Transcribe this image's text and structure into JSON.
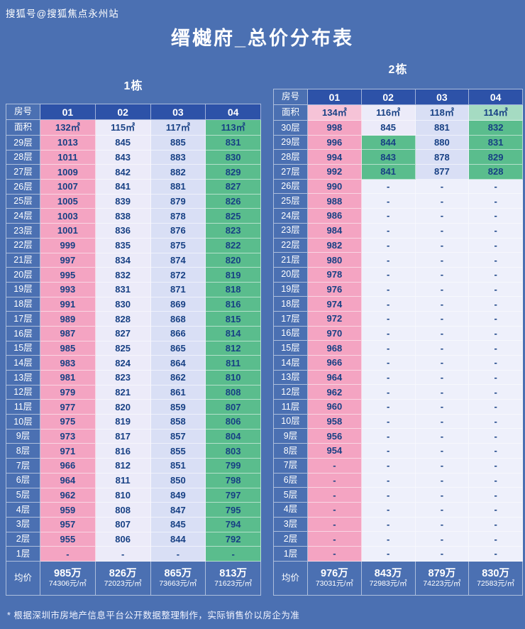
{
  "page": {
    "watermark": "搜狐号@搜狐焦点永州站",
    "title": "缙樾府_总价分布表",
    "footnote": "* 根据深圳市房地产信息平台公开数据整理制作，实际销售价以房企为准"
  },
  "colors": {
    "page_bg": "#4b70b2",
    "header_blue": "#2d52a8",
    "number_text": "#174084",
    "pink": "#f4a4c2",
    "pinksoft": "#f6c3d7",
    "light": "#ecebf9",
    "lightblue": "#d9dff5",
    "green": "#5abd8d",
    "greensoft": "#a5dbc2",
    "pale": "#eef0fb"
  },
  "chart_data": [
    {
      "type": "table",
      "building_label": "1栋",
      "room_header": "房号",
      "area_header": "面积",
      "avg_label": "均价",
      "room_numbers": [
        "01",
        "02",
        "03",
        "04"
      ],
      "areas": [
        "132㎡",
        "115㎡",
        "117㎡",
        "113㎡"
      ],
      "area_colors": [
        "pink",
        "light",
        "lightblue",
        "green"
      ],
      "default_colors": [
        "pink",
        "light",
        "lightblue",
        "green"
      ],
      "floors": [
        {
          "label": "29层",
          "values": [
            "1013",
            "845",
            "885",
            "831"
          ]
        },
        {
          "label": "28层",
          "values": [
            "1011",
            "843",
            "883",
            "830"
          ]
        },
        {
          "label": "27层",
          "values": [
            "1009",
            "842",
            "882",
            "829"
          ]
        },
        {
          "label": "26层",
          "values": [
            "1007",
            "841",
            "881",
            "827"
          ]
        },
        {
          "label": "25层",
          "values": [
            "1005",
            "839",
            "879",
            "826"
          ]
        },
        {
          "label": "24层",
          "values": [
            "1003",
            "838",
            "878",
            "825"
          ]
        },
        {
          "label": "23层",
          "values": [
            "1001",
            "836",
            "876",
            "823"
          ]
        },
        {
          "label": "22层",
          "values": [
            "999",
            "835",
            "875",
            "822"
          ]
        },
        {
          "label": "21层",
          "values": [
            "997",
            "834",
            "874",
            "820"
          ]
        },
        {
          "label": "20层",
          "values": [
            "995",
            "832",
            "872",
            "819"
          ]
        },
        {
          "label": "19层",
          "values": [
            "993",
            "831",
            "871",
            "818"
          ]
        },
        {
          "label": "18层",
          "values": [
            "991",
            "830",
            "869",
            "816"
          ]
        },
        {
          "label": "17层",
          "values": [
            "989",
            "828",
            "868",
            "815"
          ]
        },
        {
          "label": "16层",
          "values": [
            "987",
            "827",
            "866",
            "814"
          ]
        },
        {
          "label": "15层",
          "values": [
            "985",
            "825",
            "865",
            "812"
          ]
        },
        {
          "label": "14层",
          "values": [
            "983",
            "824",
            "864",
            "811"
          ]
        },
        {
          "label": "13层",
          "values": [
            "981",
            "823",
            "862",
            "810"
          ]
        },
        {
          "label": "12层",
          "values": [
            "979",
            "821",
            "861",
            "808"
          ]
        },
        {
          "label": "11层",
          "values": [
            "977",
            "820",
            "859",
            "807"
          ]
        },
        {
          "label": "10层",
          "values": [
            "975",
            "819",
            "858",
            "806"
          ]
        },
        {
          "label": "9层",
          "values": [
            "973",
            "817",
            "857",
            "804"
          ]
        },
        {
          "label": "8层",
          "values": [
            "971",
            "816",
            "855",
            "803"
          ]
        },
        {
          "label": "7层",
          "values": [
            "966",
            "812",
            "851",
            "799"
          ]
        },
        {
          "label": "6层",
          "values": [
            "964",
            "811",
            "850",
            "798"
          ]
        },
        {
          "label": "5层",
          "values": [
            "962",
            "810",
            "849",
            "797"
          ]
        },
        {
          "label": "4层",
          "values": [
            "959",
            "808",
            "847",
            "795"
          ]
        },
        {
          "label": "3层",
          "values": [
            "957",
            "807",
            "845",
            "794"
          ]
        },
        {
          "label": "2层",
          "values": [
            "955",
            "806",
            "844",
            "792"
          ]
        },
        {
          "label": "1层",
          "values": [
            "-",
            "-",
            "-",
            "-"
          ]
        }
      ],
      "averages": [
        {
          "price": "985万",
          "unit": "74306元/㎡"
        },
        {
          "price": "826万",
          "unit": "72023元/㎡"
        },
        {
          "price": "865万",
          "unit": "73663元/㎡"
        },
        {
          "price": "813万",
          "unit": "71623元/㎡"
        }
      ]
    },
    {
      "type": "table",
      "building_label": "2栋",
      "room_header": "房号",
      "area_header": "面积",
      "avg_label": "均价",
      "room_numbers": [
        "01",
        "02",
        "03",
        "04"
      ],
      "areas": [
        "134㎡",
        "116㎡",
        "118㎡",
        "114㎡"
      ],
      "area_colors": [
        "pinksoft",
        "light",
        "lightblue",
        "greensoft"
      ],
      "default_colors": [
        "pink",
        "pale",
        "pale",
        "pale"
      ],
      "floors": [
        {
          "label": "30层",
          "values": [
            "998",
            "845",
            "881",
            "832"
          ],
          "colors": [
            "pink",
            "light",
            "lightblue",
            "green"
          ]
        },
        {
          "label": "29层",
          "values": [
            "996",
            "844",
            "880",
            "831"
          ],
          "colors": [
            "pink",
            "green",
            "lightblue",
            "green"
          ]
        },
        {
          "label": "28层",
          "values": [
            "994",
            "843",
            "878",
            "829"
          ],
          "colors": [
            "pink",
            "green",
            "lightblue",
            "green"
          ]
        },
        {
          "label": "27层",
          "values": [
            "992",
            "841",
            "877",
            "828"
          ],
          "colors": [
            "pink",
            "green",
            "lightblue",
            "green"
          ]
        },
        {
          "label": "26层",
          "values": [
            "990",
            "-",
            "-",
            "-"
          ]
        },
        {
          "label": "25层",
          "values": [
            "988",
            "-",
            "-",
            "-"
          ]
        },
        {
          "label": "24层",
          "values": [
            "986",
            "-",
            "-",
            "-"
          ]
        },
        {
          "label": "23层",
          "values": [
            "984",
            "-",
            "-",
            "-"
          ]
        },
        {
          "label": "22层",
          "values": [
            "982",
            "-",
            "-",
            "-"
          ]
        },
        {
          "label": "21层",
          "values": [
            "980",
            "-",
            "-",
            "-"
          ]
        },
        {
          "label": "20层",
          "values": [
            "978",
            "-",
            "-",
            "-"
          ]
        },
        {
          "label": "19层",
          "values": [
            "976",
            "-",
            "-",
            "-"
          ]
        },
        {
          "label": "18层",
          "values": [
            "974",
            "-",
            "-",
            "-"
          ]
        },
        {
          "label": "17层",
          "values": [
            "972",
            "-",
            "-",
            "-"
          ]
        },
        {
          "label": "16层",
          "values": [
            "970",
            "-",
            "-",
            "-"
          ]
        },
        {
          "label": "15层",
          "values": [
            "968",
            "-",
            "-",
            "-"
          ]
        },
        {
          "label": "14层",
          "values": [
            "966",
            "-",
            "-",
            "-"
          ]
        },
        {
          "label": "13层",
          "values": [
            "964",
            "-",
            "-",
            "-"
          ]
        },
        {
          "label": "12层",
          "values": [
            "962",
            "-",
            "-",
            "-"
          ]
        },
        {
          "label": "11层",
          "values": [
            "960",
            "-",
            "-",
            "-"
          ]
        },
        {
          "label": "10层",
          "values": [
            "958",
            "-",
            "-",
            "-"
          ]
        },
        {
          "label": "9层",
          "values": [
            "956",
            "-",
            "-",
            "-"
          ]
        },
        {
          "label": "8层",
          "values": [
            "954",
            "-",
            "-",
            "-"
          ]
        },
        {
          "label": "7层",
          "values": [
            "-",
            "-",
            "-",
            "-"
          ]
        },
        {
          "label": "6层",
          "values": [
            "-",
            "-",
            "-",
            "-"
          ]
        },
        {
          "label": "5层",
          "values": [
            "-",
            "-",
            "-",
            "-"
          ]
        },
        {
          "label": "4层",
          "values": [
            "-",
            "-",
            "-",
            "-"
          ]
        },
        {
          "label": "3层",
          "values": [
            "-",
            "-",
            "-",
            "-"
          ]
        },
        {
          "label": "2层",
          "values": [
            "-",
            "-",
            "-",
            "-"
          ]
        },
        {
          "label": "1层",
          "values": [
            "-",
            "-",
            "-",
            "-"
          ]
        }
      ],
      "averages": [
        {
          "price": "976万",
          "unit": "73031元/㎡"
        },
        {
          "price": "843万",
          "unit": "72983元/㎡"
        },
        {
          "price": "879万",
          "unit": "74223元/㎡"
        },
        {
          "price": "830万",
          "unit": "72583元/㎡"
        }
      ]
    }
  ]
}
